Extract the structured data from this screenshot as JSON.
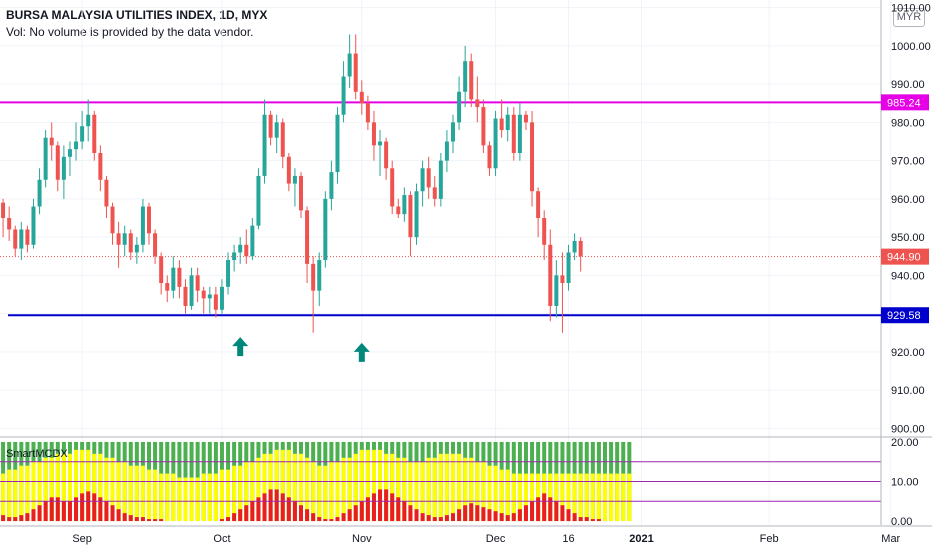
{
  "header": {
    "title": "BURSA MALAYSIA UTILITIES INDEX, 1D, MYX",
    "volume_note": "Vol: No volume is provided by the data vendor.",
    "currency": "MYR"
  },
  "chart_data": [
    {
      "type": "candlestick",
      "title": "BURSA MALAYSIA UTILITIES INDEX, 1D, MYX",
      "ylim": [
        898,
        1012
      ],
      "y_ticks": [
        900,
        910,
        920,
        930,
        940,
        950,
        960,
        970,
        980,
        990,
        1000,
        1010
      ],
      "x_tick_labels": [
        "Sep",
        "Oct",
        "Nov",
        "Dec",
        "16",
        "2021",
        "Feb",
        "Mar"
      ],
      "x_tick_index": [
        14,
        37,
        60,
        82,
        94,
        106,
        127,
        147
      ],
      "last_price": 944.9,
      "horizontal_lines": [
        {
          "value": 985.24,
          "label": "985.24",
          "color": "#e600e6"
        },
        {
          "value": 929.58,
          "label": "929.58",
          "color": "#0000cc"
        }
      ],
      "annotations": [
        {
          "type": "arrow-up",
          "index": 40,
          "value": 921.5,
          "color": "#00897b"
        },
        {
          "type": "arrow-up",
          "index": 60,
          "value": 920.0,
          "color": "#00897b"
        }
      ],
      "candles_ohlc": [
        [
          963,
          965,
          955,
          959
        ],
        [
          959,
          960,
          950,
          955
        ],
        [
          955,
          958,
          949,
          952
        ],
        [
          952,
          953,
          945,
          947
        ],
        [
          947,
          954,
          944,
          952
        ],
        [
          952,
          953,
          946,
          948
        ],
        [
          948,
          960,
          947,
          958
        ],
        [
          958,
          968,
          956,
          965
        ],
        [
          965,
          978,
          963,
          976
        ],
        [
          976,
          980,
          970,
          974
        ],
        [
          974,
          975,
          962,
          965
        ],
        [
          965,
          974,
          960,
          971
        ],
        [
          971,
          975,
          966,
          973
        ],
        [
          973,
          980,
          970,
          975
        ],
        [
          975,
          983,
          973,
          979
        ],
        [
          979,
          986,
          975,
          982
        ],
        [
          982,
          983,
          970,
          972
        ],
        [
          972,
          974,
          962,
          965
        ],
        [
          965,
          966,
          955,
          958
        ],
        [
          958,
          959,
          948,
          951
        ],
        [
          951,
          954,
          942,
          948
        ],
        [
          948,
          953,
          945,
          951
        ],
        [
          951,
          952,
          944,
          946
        ],
        [
          946,
          950,
          943,
          948
        ],
        [
          948,
          960,
          946,
          958
        ],
        [
          958,
          959,
          948,
          951
        ],
        [
          951,
          952,
          943,
          945
        ],
        [
          945,
          946,
          935,
          938
        ],
        [
          938,
          940,
          933,
          936
        ],
        [
          936,
          945,
          934,
          942
        ],
        [
          942,
          944,
          934,
          937
        ],
        [
          937,
          939,
          930,
          932
        ],
        [
          932,
          942,
          931,
          940
        ],
        [
          940,
          942,
          933,
          936
        ],
        [
          936,
          937,
          930,
          934
        ],
        [
          934,
          937,
          930,
          935
        ],
        [
          935,
          937,
          929,
          931
        ],
        [
          931,
          939,
          930,
          937
        ],
        [
          937,
          946,
          935,
          944
        ],
        [
          944,
          948,
          941,
          946
        ],
        [
          946,
          950,
          943,
          948
        ],
        [
          948,
          952,
          943,
          945
        ],
        [
          945,
          955,
          944,
          953
        ],
        [
          953,
          968,
          952,
          966
        ],
        [
          966,
          986,
          964,
          982
        ],
        [
          982,
          983,
          974,
          976
        ],
        [
          976,
          982,
          972,
          980
        ],
        [
          980,
          981,
          968,
          971
        ],
        [
          971,
          972,
          962,
          964
        ],
        [
          964,
          968,
          958,
          966
        ],
        [
          966,
          967,
          955,
          957
        ],
        [
          957,
          958,
          938,
          943
        ],
        [
          943,
          945,
          925,
          936
        ],
        [
          936,
          946,
          932,
          944
        ],
        [
          944,
          962,
          942,
          960
        ],
        [
          960,
          970,
          957,
          967
        ],
        [
          967,
          984,
          964,
          982
        ],
        [
          982,
          996,
          980,
          992
        ],
        [
          992,
          1003,
          989,
          998
        ],
        [
          998,
          1003,
          986,
          988
        ],
        [
          988,
          991,
          982,
          985
        ],
        [
          985,
          987,
          978,
          980
        ],
        [
          980,
          983,
          970,
          974
        ],
        [
          974,
          978,
          966,
          975
        ],
        [
          975,
          976,
          965,
          968
        ],
        [
          968,
          970,
          956,
          958
        ],
        [
          958,
          960,
          955,
          956
        ],
        [
          956,
          963,
          954,
          961
        ],
        [
          961,
          962,
          945,
          950
        ],
        [
          950,
          964,
          948,
          962
        ],
        [
          962,
          970,
          958,
          968
        ],
        [
          968,
          971,
          960,
          963
        ],
        [
          963,
          966,
          958,
          960
        ],
        [
          960,
          972,
          958,
          970
        ],
        [
          970,
          978,
          967,
          975
        ],
        [
          975,
          982,
          972,
          980
        ],
        [
          980,
          992,
          978,
          988
        ],
        [
          988,
          1000,
          984,
          996
        ],
        [
          996,
          998,
          984,
          986
        ],
        [
          986,
          992,
          980,
          984
        ],
        [
          984,
          986,
          972,
          974
        ],
        [
          974,
          975,
          966,
          968
        ],
        [
          968,
          983,
          966,
          981
        ],
        [
          981,
          986,
          976,
          978
        ],
        [
          978,
          984,
          975,
          982
        ],
        [
          982,
          984,
          970,
          972
        ],
        [
          972,
          985,
          970,
          982
        ],
        [
          982,
          983,
          978,
          980
        ],
        [
          980,
          983,
          958,
          962
        ],
        [
          962,
          963,
          950,
          955
        ],
        [
          955,
          957,
          944,
          948
        ],
        [
          948,
          952,
          928,
          932
        ],
        [
          932,
          944,
          929,
          940
        ],
        [
          940,
          946,
          925,
          938
        ],
        [
          938,
          948,
          936,
          946
        ],
        [
          946,
          951,
          944,
          949
        ],
        [
          949,
          950,
          941,
          945
        ]
      ]
    },
    {
      "type": "bar",
      "title": "SmartMCDX",
      "ylim": [
        -1,
        21
      ],
      "y_ticks": [
        0,
        10,
        20
      ],
      "y_tick_labels": [
        "0.00",
        "10.00",
        "20.00"
      ],
      "reference_lines": [
        5,
        10,
        15
      ],
      "series": [
        {
          "name": "green",
          "color": "#4caf50",
          "values": [
            20,
            20,
            20,
            20,
            20,
            20,
            20,
            20,
            20,
            20,
            20,
            20,
            20,
            20,
            20,
            20,
            20,
            20,
            20,
            20,
            20,
            20,
            20,
            20,
            20,
            20,
            20,
            20,
            20,
            20,
            20,
            20,
            20,
            20,
            20,
            20,
            20,
            20,
            20,
            20,
            20,
            20,
            20,
            20,
            20,
            20,
            20,
            20,
            20,
            20,
            20,
            20,
            20,
            20,
            20,
            20,
            20,
            20,
            20,
            20,
            20,
            20,
            20,
            20,
            20,
            20,
            20,
            20,
            20,
            20,
            20,
            20,
            20,
            20,
            20,
            20,
            20,
            20,
            20,
            20,
            20,
            20,
            20,
            20,
            20,
            20,
            20,
            20,
            20,
            20,
            20,
            20,
            20,
            20,
            20,
            20,
            20,
            20,
            20,
            20,
            20,
            20,
            20,
            20,
            20
          ]
        },
        {
          "name": "yellow",
          "color": "#ffff00",
          "values": [
            12,
            12,
            13,
            13,
            14,
            14,
            15,
            15,
            16,
            16,
            17,
            17,
            17,
            18,
            18,
            18,
            17,
            17,
            16,
            16,
            15,
            15,
            14,
            14,
            14,
            13,
            13,
            12,
            12,
            12,
            11,
            11,
            11,
            11,
            12,
            12,
            12,
            13,
            13,
            14,
            14,
            15,
            15,
            16,
            17,
            17,
            18,
            18,
            18,
            17,
            17,
            16,
            15,
            14,
            14,
            15,
            15,
            16,
            16,
            17,
            18,
            18,
            18,
            18,
            17,
            17,
            16,
            16,
            15,
            15,
            15,
            16,
            16,
            17,
            17,
            17,
            17,
            16,
            16,
            15,
            15,
            14,
            14,
            13,
            13,
            12,
            12,
            12,
            12,
            12,
            12,
            12,
            12,
            12,
            12,
            12,
            12,
            12,
            12,
            12,
            12,
            12,
            12,
            12,
            12
          ]
        },
        {
          "name": "red",
          "color": "#e91e1e",
          "values": [
            2,
            1.5,
            1,
            1,
            1.5,
            2,
            3,
            4,
            5,
            6,
            6,
            5,
            5,
            6,
            7,
            7.5,
            7,
            6,
            5,
            4,
            3,
            2,
            1.5,
            1,
            1,
            0.5,
            0.5,
            0.5,
            0,
            0,
            0,
            0,
            0,
            0,
            0,
            0,
            0,
            0.5,
            1,
            2,
            3,
            4,
            5,
            6,
            7,
            8,
            8,
            7,
            6,
            5,
            4,
            3,
            2,
            1,
            0.5,
            0.5,
            1,
            2,
            3,
            4,
            5,
            6,
            7,
            8,
            8,
            7,
            6,
            5,
            4,
            3,
            2,
            1.5,
            1,
            1,
            1.5,
            2,
            3,
            4,
            4.5,
            4,
            3.5,
            3,
            2.5,
            2,
            1.5,
            2,
            3,
            4,
            5,
            6,
            7,
            6,
            5,
            4,
            3,
            2,
            1,
            1,
            0.5,
            0.5,
            0,
            0,
            0,
            0,
            0
          ]
        }
      ]
    }
  ]
}
